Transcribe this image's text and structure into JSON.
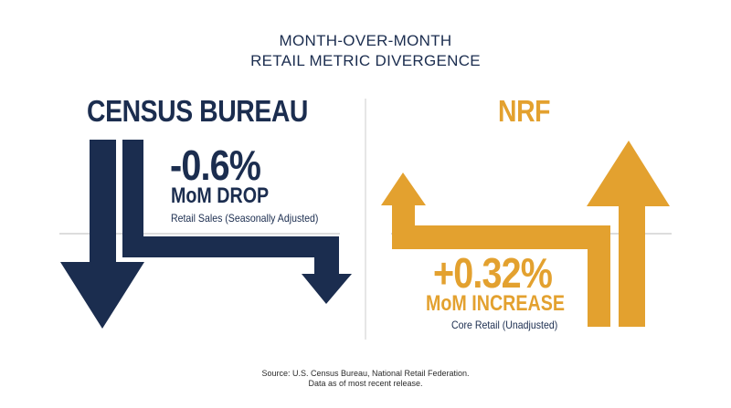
{
  "title": {
    "line1": "MONTH-OVER-MONTH",
    "line2": "RETAIL METRIC DIVERGENCE"
  },
  "census": {
    "heading": "CENSUS BUREAU",
    "value": "-0.6%",
    "label": "MoM DROP",
    "note": "Retail Sales (Seasonally Adjusted)",
    "color": "#1b2d4f",
    "direction": "down"
  },
  "nrf": {
    "heading": "NRF",
    "value": "+0.32%",
    "label": "MoM INCREASE",
    "note": "Core Retail (Unadjusted)",
    "color": "#e3a12f",
    "direction": "up"
  },
  "source": {
    "line1": "Source: U.S. Census Bureau, National Retail Federation.",
    "line2": "Data as of most recent release."
  },
  "colors": {
    "divider": "#cccccc",
    "baseline": "#bbbbbb"
  }
}
